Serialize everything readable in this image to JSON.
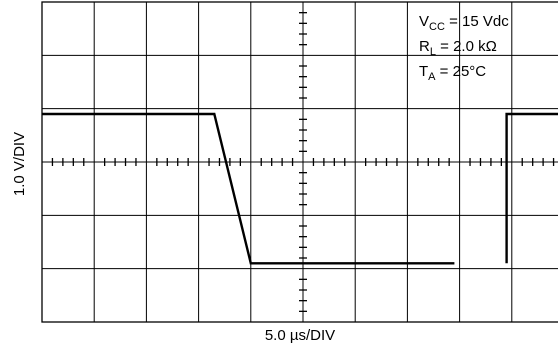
{
  "chart_data": {
    "type": "line",
    "xlabel": "5.0 µs/DIV",
    "ylabel": "1.0 V/DIV",
    "x_divisions": 10,
    "y_divisions": 6,
    "grid": true,
    "conditions": {
      "vcc": {
        "sym": "V",
        "sub": "CC",
        "rest": " = 15 Vdc"
      },
      "rl": {
        "sym": "R",
        "sub": "L",
        "rest": " = 2.0 kΩ"
      },
      "ta": {
        "sym": "T",
        "sub": "A",
        "rest": " = 25°C"
      }
    },
    "series": [
      {
        "x": [
          0.0,
          3.3,
          4.0,
          7.9
        ],
        "y": [
          0.9,
          0.9,
          -1.9,
          -1.9
        ]
      },
      {
        "x": [
          8.9,
          8.9,
          9.9
        ],
        "y": [
          -1.9,
          0.9,
          0.9
        ]
      }
    ],
    "color": "#000000"
  }
}
